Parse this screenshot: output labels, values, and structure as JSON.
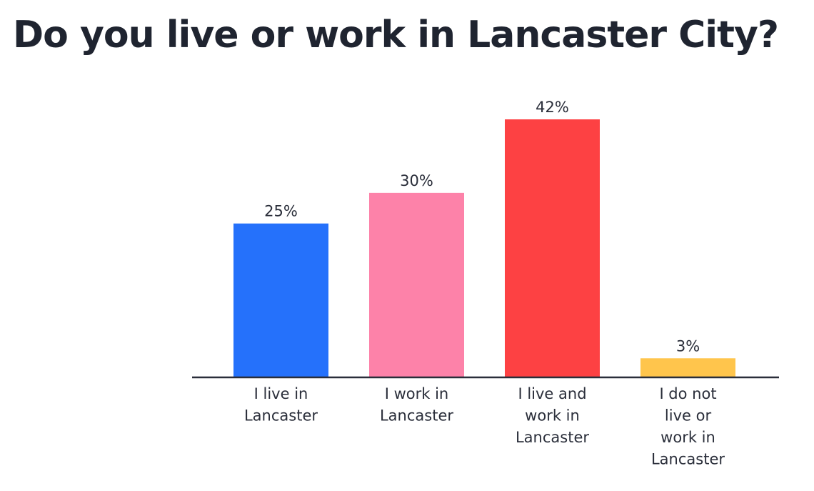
{
  "chart_data": {
    "type": "bar",
    "title": "Do you live or work in Lancaster City?",
    "categories": [
      [
        "I live in",
        "Lancaster"
      ],
      [
        "I work in",
        "Lancaster"
      ],
      [
        "I live and",
        "work in",
        "Lancaster"
      ],
      [
        "I do not",
        "live or",
        "work in",
        "Lancaster"
      ]
    ],
    "values": [
      25,
      30,
      42,
      3
    ],
    "value_labels": [
      "25%",
      "30%",
      "42%",
      "3%"
    ],
    "colors": [
      "#2571fb",
      "#fd82a9",
      "#fd4143",
      "#ffc54c"
    ],
    "axis_color": "#2a2e3a",
    "unit": "%",
    "ylim": [
      0,
      42
    ]
  }
}
